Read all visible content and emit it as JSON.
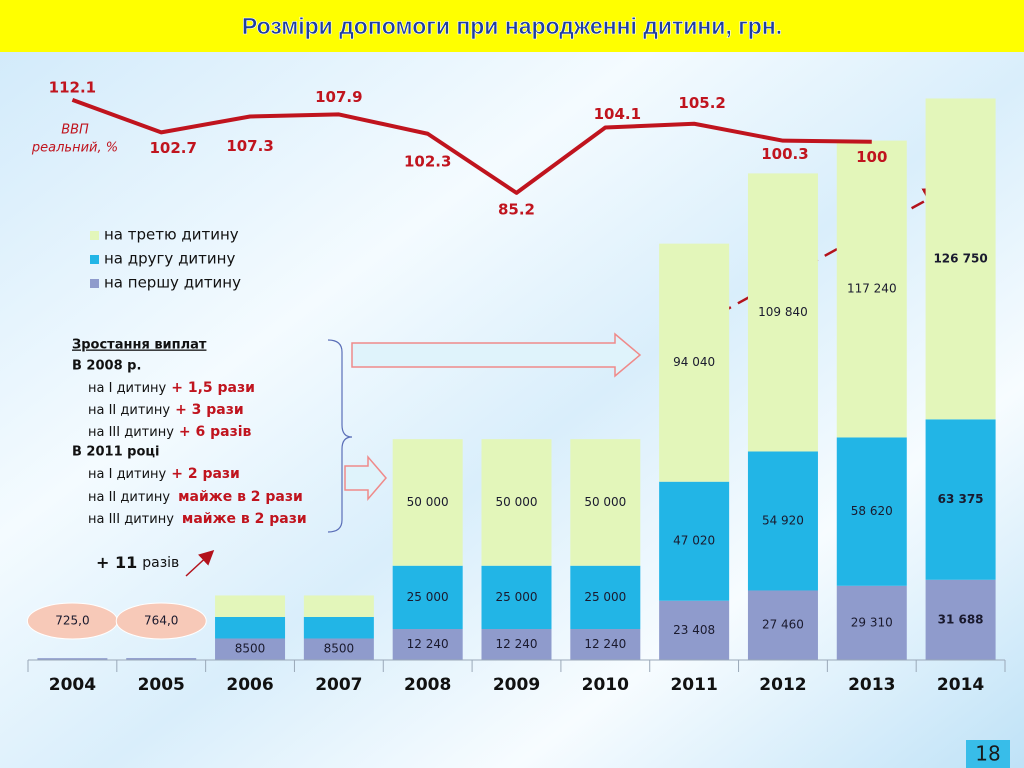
{
  "title": "Розміри допомоги при народженні дитини, грн.",
  "slide_number": "18",
  "chart_data": [
    {
      "type": "bar",
      "stacked": true,
      "categories": [
        "2004",
        "2005",
        "2006",
        "2007",
        "2008",
        "2009",
        "2010",
        "2011",
        "2012",
        "2013",
        "2014"
      ],
      "ylim": [
        0,
        222000
      ],
      "series": [
        {
          "name": "на першу дитину",
          "color": "#8f9bcc",
          "values": [
            725,
            764,
            8500,
            8500,
            12240,
            12240,
            12240,
            23408,
            27460,
            29310,
            31688
          ],
          "value_labels": [
            "725,0",
            "764,0",
            "8500",
            "8500",
            "12 240",
            "12 240",
            "12 240",
            "23 408",
            "27 460",
            "29 310",
            "31 688"
          ]
        },
        {
          "name": "на другу дитину",
          "color": "#22b5e6",
          "values": [
            null,
            null,
            8500,
            8500,
            25000,
            25000,
            25000,
            47020,
            54920,
            58620,
            63375
          ],
          "value_labels": [
            null,
            null,
            null,
            null,
            "25 000",
            "25 000",
            "25 000",
            "47 020",
            "54 920",
            "58 620",
            "63 375"
          ]
        },
        {
          "name": "на третю дитину",
          "color": "#e3f6ba",
          "values": [
            null,
            null,
            8500,
            8500,
            50000,
            50000,
            50000,
            94040,
            109840,
            117240,
            126750
          ],
          "value_labels": [
            null,
            null,
            null,
            null,
            "50 000",
            "50 000",
            "50 000",
            "94 040",
            "109 840",
            "117 240",
            "126 750"
          ]
        }
      ]
    },
    {
      "type": "line",
      "label": [
        "ВВП",
        "реальний, %"
      ],
      "color": "#c0141e",
      "categories": [
        "2004",
        "2005",
        "2006",
        "2007",
        "2008",
        "2009",
        "2010",
        "2011",
        "2012",
        "2013",
        "2014"
      ],
      "values": [
        112.1,
        102.7,
        107.3,
        107.9,
        102.3,
        85.2,
        104.1,
        105.2,
        100.3,
        100,
        null
      ],
      "ylim": [
        60,
        130
      ]
    }
  ],
  "growth_note": {
    "title": "Зростання виплат",
    "period1": "В 2008 р.",
    "items1": [
      {
        "label": "на I  дитину",
        "value": "+ 1,5 рази"
      },
      {
        "label": "на II  дитину",
        "value": "+ 3 рази"
      },
      {
        "label": "на III дитину",
        "value": "+ 6 разів"
      }
    ],
    "period2": "В 2011 році",
    "items2": [
      {
        "label": "на I   дитину",
        "value": "+ 2 рази"
      },
      {
        "label": "на II  дитину",
        "value": "майже в 2 рази"
      },
      {
        "label": "на III дитину",
        "value": "майже в 2 рази"
      }
    ]
  },
  "increase_note": {
    "value": "+ 11",
    "unit": "разів"
  }
}
